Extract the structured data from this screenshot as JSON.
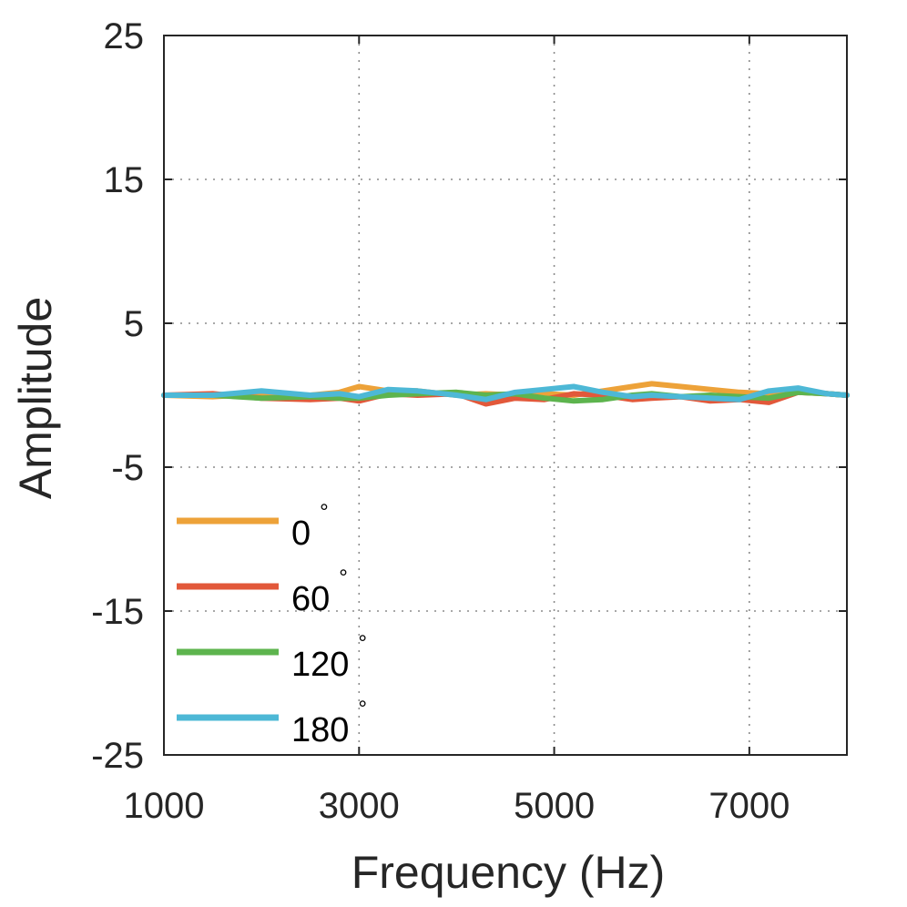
{
  "chart_data": {
    "type": "line",
    "xlabel": "Frequency (Hz)",
    "ylabel": "Amplitude",
    "xlim": [
      1000,
      8000
    ],
    "ylim": [
      -25,
      25
    ],
    "xticks": [
      1000,
      3000,
      5000,
      7000
    ],
    "yticks": [
      -25,
      -15,
      -5,
      5,
      15,
      25
    ],
    "xtick_labels": [
      "1000",
      "3000",
      "5000",
      "7000"
    ],
    "ytick_labels": [
      "-25",
      "-15",
      "-5",
      "5",
      "15",
      "25"
    ],
    "grid": true,
    "legend_position": "bottom-left",
    "degree_symbol": "°",
    "x": [
      1000,
      1500,
      2000,
      2500,
      2800,
      3000,
      3300,
      3600,
      4000,
      4300,
      4600,
      4900,
      5200,
      5500,
      5800,
      6000,
      6300,
      6600,
      6900,
      7200,
      7500,
      7800,
      8000
    ],
    "series": [
      {
        "name": "0",
        "color": "#EDA239",
        "values": [
          0.0,
          -0.1,
          0.1,
          0.0,
          0.2,
          0.6,
          0.3,
          0.3,
          0.0,
          0.1,
          0.0,
          0.1,
          0.0,
          0.3,
          0.6,
          0.8,
          0.6,
          0.4,
          0.2,
          0.1,
          0.3,
          0.1,
          0.0
        ]
      },
      {
        "name": "60",
        "color": "#E2583A",
        "values": [
          0.0,
          0.1,
          -0.2,
          -0.3,
          -0.2,
          -0.4,
          0.1,
          0.0,
          0.1,
          -0.6,
          -0.2,
          -0.3,
          0.1,
          0.0,
          -0.3,
          -0.2,
          -0.1,
          -0.4,
          -0.3,
          -0.5,
          0.2,
          0.1,
          0.0
        ]
      },
      {
        "name": "120",
        "color": "#5DB44E",
        "values": [
          0.0,
          0.0,
          -0.2,
          -0.1,
          -0.2,
          -0.2,
          0.0,
          0.1,
          0.2,
          0.0,
          0.1,
          -0.2,
          -0.4,
          -0.3,
          0.0,
          0.1,
          -0.1,
          0.0,
          -0.1,
          -0.2,
          0.2,
          0.1,
          0.0
        ]
      },
      {
        "name": "180",
        "color": "#4DB8D6",
        "values": [
          0.0,
          0.0,
          0.3,
          0.0,
          0.1,
          -0.1,
          0.4,
          0.3,
          0.0,
          -0.3,
          0.2,
          0.4,
          0.6,
          0.2,
          -0.1,
          0.0,
          -0.1,
          -0.2,
          -0.3,
          0.3,
          0.5,
          0.1,
          0.0
        ]
      }
    ]
  }
}
